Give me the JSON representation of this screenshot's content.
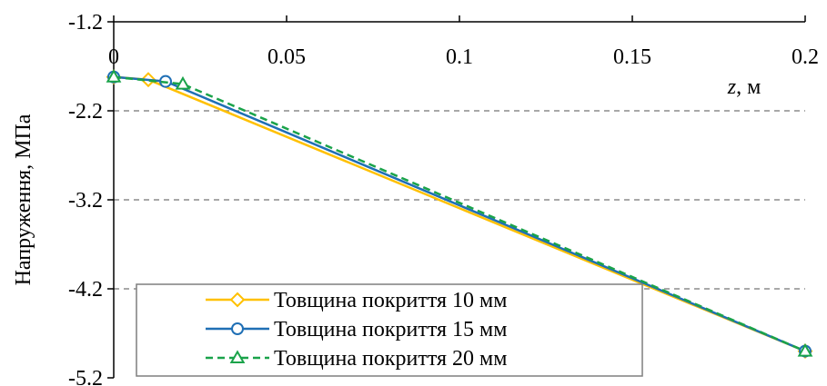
{
  "chart_data": {
    "type": "line",
    "xlabel_var": "z",
    "xlabel_unit": ", м",
    "ylabel": "Напруження, МПа",
    "xlim": [
      0,
      0.2
    ],
    "ylim": [
      -5.2,
      -1.2
    ],
    "x_ticks": [
      0,
      0.05,
      0.1,
      0.15,
      0.2
    ],
    "x_tick_labels": [
      "0",
      "0.05",
      "0.1",
      "0.15",
      "0.2"
    ],
    "y_ticks": [
      -1.2,
      -2.2,
      -3.2,
      -4.2,
      -5.2
    ],
    "y_tick_labels": [
      "-1.2",
      "-2.2",
      "-3.2",
      "-4.2",
      "-5.2"
    ],
    "grid": "horizontal dashed",
    "x_axis_position": "top",
    "legend_position": "bottom-left",
    "series": [
      {
        "name": "Товщина покриття 10 мм",
        "color": "#FFC000",
        "marker": "diamond",
        "dash": "solid",
        "x": [
          0,
          0.01,
          0.2
        ],
        "y": [
          -1.82,
          -1.85,
          -4.9
        ]
      },
      {
        "name": "Товщина покриття 15 мм",
        "color": "#1F6FB5",
        "marker": "circle",
        "dash": "solid",
        "x": [
          0,
          0.015,
          0.2
        ],
        "y": [
          -1.82,
          -1.87,
          -4.9
        ]
      },
      {
        "name": "Товщина покриття 20 мм",
        "color": "#1AA34A",
        "marker": "triangle",
        "dash": "dashed",
        "x": [
          0,
          0.02,
          0.2
        ],
        "y": [
          -1.82,
          -1.9,
          -4.9
        ]
      }
    ]
  }
}
